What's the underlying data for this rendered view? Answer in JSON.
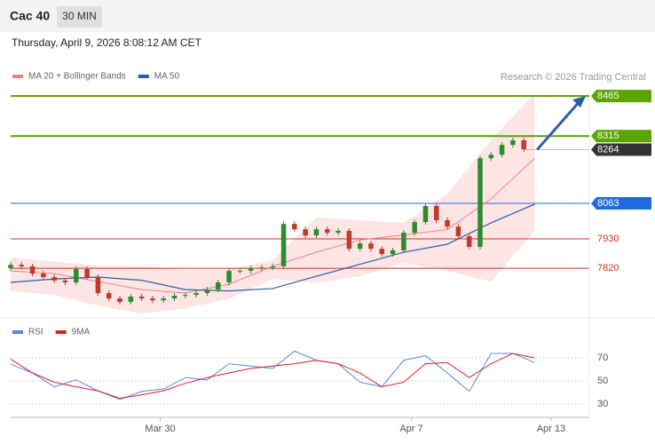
{
  "header": {
    "symbol": "Cac 40",
    "interval": "30 MIN",
    "datetime": "Thursday, April 9, 2026 8:08:12 AM CET"
  },
  "chart_data": [
    {
      "type": "candlestick",
      "credit": "Research © 2026 Trading Central",
      "xlim": [
        0,
        53
      ],
      "ylim": [
        7644,
        8492
      ],
      "up_color": "#2e8b2e",
      "down_color": "#c0392b",
      "open": [
        7820,
        7833,
        7827,
        7800,
        7787,
        7774,
        7767,
        7817,
        7787,
        7727,
        7707,
        7694,
        7714,
        7707,
        7700,
        7707,
        7717,
        7720,
        7727,
        7740,
        7767,
        7810,
        7810,
        7820,
        7823,
        7827,
        7986,
        7966,
        7943,
        7966,
        7953,
        7960,
        7893,
        7913,
        7893,
        7873,
        7887,
        7953,
        7993,
        8053,
        8000,
        7976,
        7940,
        7900,
        8232,
        8245,
        8282,
        8299
      ],
      "high": [
        7843,
        7843,
        7837,
        7810,
        7797,
        7784,
        7827,
        7827,
        7797,
        7737,
        7717,
        7724,
        7724,
        7717,
        7717,
        7727,
        7730,
        7737,
        7750,
        7777,
        7820,
        7820,
        7830,
        7833,
        7837,
        7996,
        7996,
        7976,
        7976,
        7976,
        7970,
        7970,
        7923,
        7923,
        7903,
        7897,
        7963,
        8003,
        8063,
        8063,
        8010,
        7986,
        7950,
        8242,
        8255,
        8292,
        8309,
        8309
      ],
      "low": [
        7810,
        7817,
        7790,
        7777,
        7764,
        7757,
        7757,
        7777,
        7717,
        7697,
        7684,
        7684,
        7697,
        7690,
        7690,
        7697,
        7707,
        7710,
        7717,
        7730,
        7757,
        7800,
        7800,
        7810,
        7813,
        7817,
        7956,
        7933,
        7933,
        7943,
        7943,
        7883,
        7883,
        7883,
        7863,
        7863,
        7877,
        7943,
        7983,
        7990,
        7966,
        7930,
        7890,
        7890,
        8222,
        8235,
        8272,
        8256
      ],
      "close": [
        7833,
        7827,
        7800,
        7787,
        7774,
        7767,
        7817,
        7787,
        7727,
        7707,
        7694,
        7714,
        7707,
        7700,
        7707,
        7717,
        7720,
        7727,
        7740,
        7767,
        7810,
        7810,
        7820,
        7823,
        7827,
        7986,
        7966,
        7943,
        7966,
        7953,
        7960,
        7893,
        7913,
        7893,
        7873,
        7887,
        7953,
        7993,
        8053,
        8000,
        7976,
        7940,
        7900,
        8232,
        8245,
        8282,
        8299,
        8266
      ],
      "series": [
        {
          "name": "MA 20 + Bollinger Bands",
          "color": "#f08080",
          "x": [
            0,
            4,
            8,
            12,
            16,
            20,
            24,
            28,
            32,
            36,
            40,
            44,
            48
          ],
          "values": [
            7810,
            7800,
            7770,
            7740,
            7727,
            7760,
            7827,
            7880,
            7926,
            7945,
            7965,
            8080,
            8232
          ]
        },
        {
          "name": "MA 50",
          "color": "#2c5ea8",
          "x": [
            0,
            4,
            8,
            12,
            16,
            20,
            24,
            28,
            32,
            36,
            40,
            44,
            48
          ],
          "values": [
            7767,
            7780,
            7787,
            7775,
            7740,
            7735,
            7744,
            7790,
            7835,
            7880,
            7910,
            7990,
            8060
          ]
        }
      ],
      "bollinger": {
        "color": "#fddede",
        "upper": [
          7860,
          7845,
          7830,
          7827,
          7815,
          7815,
          7850,
          8010,
          8000,
          7990,
          8100,
          8300,
          8475
        ],
        "lower": [
          7734,
          7720,
          7680,
          7650,
          7670,
          7705,
          7780,
          7765,
          7790,
          7840,
          7810,
          7770,
          7960
        ]
      },
      "levels": [
        {
          "value": 8465,
          "color": "#5aa500",
          "boxed": true
        },
        {
          "value": 8315,
          "color": "#5aa500",
          "boxed": true
        },
        {
          "value": 8063,
          "color": "#1e6be0",
          "boxed": true
        },
        {
          "value": 7930,
          "color": "#d93025",
          "boxed": false
        },
        {
          "value": 7820,
          "color": "#d93025",
          "boxed": false
        }
      ],
      "last": {
        "value": 8264,
        "color": "#333333"
      }
    },
    {
      "type": "line",
      "xlim": [
        0,
        53
      ],
      "ylim": [
        20,
        84
      ],
      "yticks": [
        30,
        50,
        70
      ],
      "xticks": [
        {
          "value": 13.7,
          "label": "Mar 30"
        },
        {
          "value": 36.7,
          "label": "Apr 7"
        },
        {
          "value": 49.5,
          "label": "Apr 13"
        }
      ],
      "x": [
        0,
        2,
        4,
        6,
        8,
        10,
        12,
        14,
        16,
        18,
        20,
        22,
        24,
        26,
        28,
        30,
        32,
        34,
        36,
        38,
        40,
        42,
        44,
        46,
        48
      ],
      "series": [
        {
          "name": "RSI",
          "color": "#5b86e5",
          "values": [
            64.6,
            57,
            45,
            51,
            41.5,
            34,
            41,
            43,
            53,
            51,
            65,
            63,
            61,
            76,
            68,
            65,
            49,
            45,
            68,
            72,
            57,
            41,
            74,
            74,
            66
          ]
        },
        {
          "name": "9MA",
          "color": "#e02020",
          "values": [
            69,
            57,
            49,
            45,
            41.5,
            35,
            38,
            41.5,
            48,
            53,
            57,
            61,
            63,
            65,
            68,
            65,
            57,
            45,
            49,
            65,
            66,
            53,
            65,
            74,
            70
          ]
        }
      ]
    }
  ]
}
